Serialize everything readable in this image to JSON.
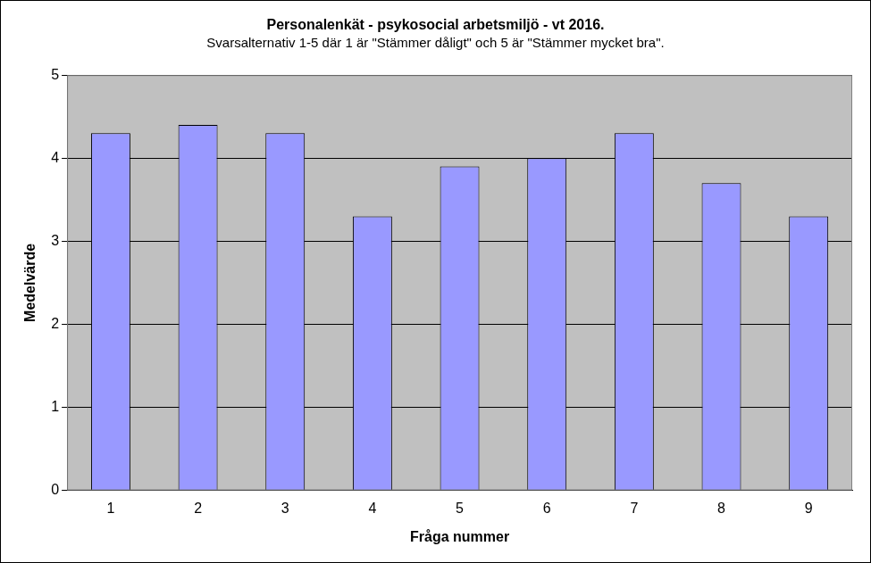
{
  "chart_data": {
    "type": "bar",
    "title": "Personalenkät - psykosocial arbetsmiljö - vt 2016.",
    "subtitle": "Svarsalternativ 1-5 där 1 är \"Stämmer dåligt\" och 5 är \"Stämmer mycket bra\".",
    "xlabel": "Fråga nummer",
    "ylabel": "Medelvärde",
    "categories": [
      "1",
      "2",
      "3",
      "4",
      "5",
      "6",
      "7",
      "8",
      "9"
    ],
    "values": [
      4.3,
      4.4,
      4.3,
      3.3,
      3.9,
      4.0,
      4.3,
      3.7,
      3.3
    ],
    "color": "#9999ff",
    "ylim": [
      0,
      5
    ],
    "yticks": [
      0,
      1,
      2,
      3,
      4,
      5
    ],
    "grid": true
  }
}
